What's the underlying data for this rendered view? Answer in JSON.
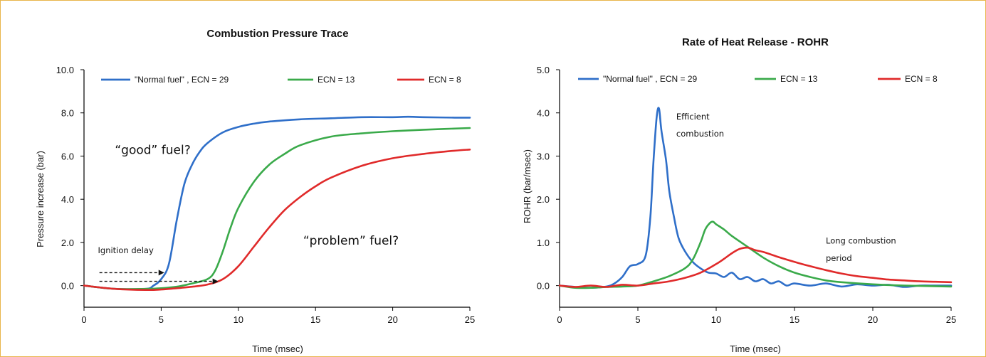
{
  "chart_data": [
    {
      "type": "line",
      "title": "Combustion Pressure Trace",
      "xlabel": "Time (msec)",
      "ylabel": "Pressure increase (bar)",
      "xlim": [
        0,
        25
      ],
      "ylim": [
        -1,
        10
      ],
      "xticks": [
        "0",
        "5",
        "10",
        "15",
        "20",
        "25"
      ],
      "yticks": [
        "0.0",
        "2.0",
        "4.0",
        "6.0",
        "8.0",
        "10.0"
      ],
      "grid": false,
      "legend_position": "top",
      "series": [
        {
          "name": "\"Normal fuel\" , ECN = 29",
          "color": "#2f6fc9",
          "x": [
            0,
            2,
            4,
            4.5,
            5,
            5.5,
            6,
            6.5,
            7,
            7.5,
            8,
            9,
            10,
            11,
            12,
            14,
            16,
            18,
            20,
            21,
            22,
            24,
            25
          ],
          "y": [
            0.0,
            -0.15,
            -0.15,
            0.0,
            0.3,
            1.0,
            3.0,
            4.7,
            5.6,
            6.2,
            6.6,
            7.1,
            7.35,
            7.5,
            7.6,
            7.7,
            7.75,
            7.8,
            7.8,
            7.82,
            7.8,
            7.78,
            7.78
          ]
        },
        {
          "name": "ECN = 13",
          "color": "#3aaa4a",
          "x": [
            0,
            2,
            4,
            5,
            6,
            7,
            8,
            8.5,
            9,
            9.5,
            10,
            11,
            12,
            13,
            14,
            16,
            18,
            20,
            22,
            25
          ],
          "y": [
            0.0,
            -0.15,
            -0.15,
            -0.12,
            -0.05,
            0.1,
            0.3,
            0.7,
            1.6,
            2.7,
            3.6,
            4.8,
            5.6,
            6.1,
            6.5,
            6.9,
            7.05,
            7.15,
            7.22,
            7.3
          ]
        },
        {
          "name": "ECN = 8",
          "color": "#e02a2a",
          "x": [
            0,
            2,
            4,
            5,
            6,
            7,
            8,
            9,
            10,
            11,
            12,
            13,
            14,
            15,
            16,
            18,
            20,
            22,
            24,
            25
          ],
          "y": [
            0.0,
            -0.15,
            -0.2,
            -0.18,
            -0.12,
            -0.05,
            0.05,
            0.3,
            0.9,
            1.8,
            2.7,
            3.5,
            4.1,
            4.6,
            5.0,
            5.55,
            5.9,
            6.1,
            6.25,
            6.3
          ]
        }
      ],
      "annotations": [
        {
          "text": "“good” fuel?",
          "x": 2.0,
          "y": 6.1
        },
        {
          "text": "“problem” fuel?",
          "x": 14.2,
          "y": 1.9
        },
        {
          "text": "Ignition delay",
          "x": 0.9,
          "y": 1.5
        }
      ],
      "arrows": [
        {
          "x0": 1.0,
          "x1": 5.2,
          "y": 0.6
        },
        {
          "x0": 1.0,
          "x1": 8.7,
          "y": 0.2
        }
      ]
    },
    {
      "type": "line",
      "title": "Rate of Heat Release - ROHR",
      "xlabel": "Time (msec)",
      "ylabel": "ROHR (bar/msec)",
      "xlim": [
        0,
        25
      ],
      "ylim": [
        -0.5,
        5
      ],
      "xticks": [
        "0",
        "5",
        "10",
        "15",
        "20",
        "25"
      ],
      "yticks": [
        "0.0",
        "1.0",
        "2.0",
        "3.0",
        "4.0",
        "5.0"
      ],
      "grid": false,
      "legend_position": "top",
      "series": [
        {
          "name": "\"Normal fuel\" , ECN = 29",
          "color": "#2f6fc9",
          "x": [
            0,
            1,
            2,
            3,
            3.5,
            4,
            4.5,
            5,
            5.5,
            5.8,
            6.0,
            6.2,
            6.35,
            6.5,
            6.8,
            7.0,
            7.3,
            7.6,
            8.0,
            8.5,
            9.0,
            9.5,
            10,
            10.5,
            11,
            11.5,
            12,
            12.5,
            13,
            13.5,
            14,
            14.5,
            15,
            16,
            17,
            18,
            19,
            20,
            21,
            22,
            23,
            24,
            25
          ],
          "y": [
            0.0,
            -0.03,
            -0.05,
            -0.02,
            0.05,
            0.2,
            0.45,
            0.5,
            0.7,
            1.6,
            2.9,
            3.9,
            4.1,
            3.6,
            2.9,
            2.2,
            1.6,
            1.1,
            0.8,
            0.55,
            0.4,
            0.3,
            0.28,
            0.2,
            0.3,
            0.15,
            0.2,
            0.1,
            0.15,
            0.05,
            0.1,
            0.0,
            0.05,
            0.0,
            0.05,
            -0.02,
            0.03,
            0.0,
            0.02,
            -0.03,
            0.0,
            0.0,
            0.0
          ]
        },
        {
          "name": "ECN = 13",
          "color": "#3aaa4a",
          "x": [
            0,
            1,
            2,
            3,
            4,
            5,
            6,
            7,
            8,
            8.5,
            9.0,
            9.3,
            9.6,
            9.8,
            10.0,
            10.5,
            11,
            12,
            13,
            14,
            15,
            16,
            17,
            18,
            20,
            22,
            25
          ],
          "y": [
            0.0,
            -0.05,
            -0.05,
            -0.03,
            -0.02,
            0.0,
            0.1,
            0.22,
            0.4,
            0.6,
            1.0,
            1.3,
            1.45,
            1.48,
            1.42,
            1.3,
            1.15,
            0.9,
            0.65,
            0.45,
            0.3,
            0.2,
            0.12,
            0.08,
            0.03,
            0.0,
            -0.02
          ]
        },
        {
          "name": "ECN = 8",
          "color": "#e02a2a",
          "x": [
            0,
            1,
            2,
            3,
            4,
            5,
            6,
            7,
            8,
            9,
            10,
            10.5,
            11,
            11.5,
            12,
            12.5,
            13,
            14,
            15,
            16,
            17,
            18,
            19,
            20,
            21,
            22,
            23,
            24,
            25
          ],
          "y": [
            0.0,
            -0.03,
            0.0,
            -0.03,
            0.02,
            0.0,
            0.05,
            0.1,
            0.18,
            0.3,
            0.5,
            0.62,
            0.75,
            0.85,
            0.88,
            0.82,
            0.78,
            0.66,
            0.55,
            0.45,
            0.36,
            0.28,
            0.22,
            0.18,
            0.14,
            0.12,
            0.1,
            0.09,
            0.08
          ]
        }
      ],
      "annotations": [
        {
          "text": "Efficient",
          "x": 7.45,
          "y": 3.85
        },
        {
          "text": "combustion",
          "x": 7.45,
          "y": 3.45
        },
        {
          "text": "Long combustion",
          "x": 17.0,
          "y": 0.97
        },
        {
          "text": "period",
          "x": 17.0,
          "y": 0.57
        }
      ]
    }
  ]
}
